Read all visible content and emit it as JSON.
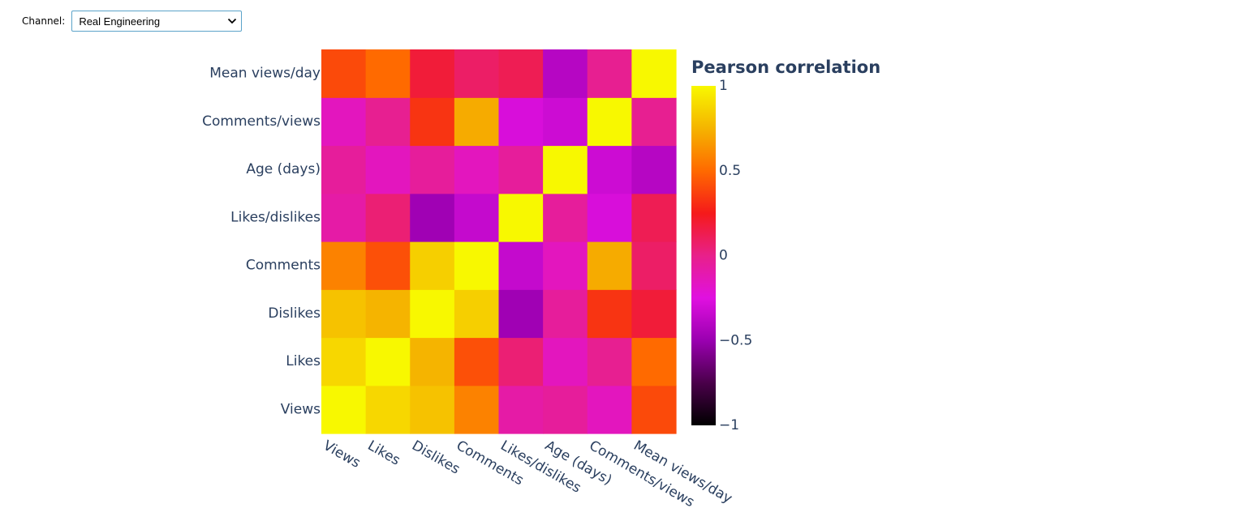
{
  "control": {
    "label": "Channel:",
    "selected": "Real Engineering"
  },
  "chart_data": {
    "type": "heatmap",
    "colorbar_title": "Pearson correlation",
    "colorbar_range": [
      -1,
      1
    ],
    "colorbar_ticks": [
      {
        "value": 1,
        "label": "1"
      },
      {
        "value": 0.5,
        "label": "0.5"
      },
      {
        "value": 0,
        "label": "0"
      },
      {
        "value": -0.5,
        "label": "−0.5"
      },
      {
        "value": -1,
        "label": "−1"
      }
    ],
    "colorscale": [
      "#000000",
      "#4a004a",
      "#9a00b0",
      "#e010e0",
      "#e8208a",
      "#f51a1a",
      "#ff6a00",
      "#f5b400",
      "#f8f800"
    ],
    "x_labels": [
      "Views",
      "Likes",
      "Dislikes",
      "Comments",
      "Likes/dislikes",
      "Age (days)",
      "Comments/views",
      "Mean views/day"
    ],
    "y_labels": [
      "Views",
      "Likes",
      "Dislikes",
      "Comments",
      "Likes/dislikes",
      "Age (days)",
      "Comments/views",
      "Mean views/day"
    ],
    "z": [
      [
        1.0,
        0.88,
        0.8,
        0.58,
        -0.08,
        -0.05,
        -0.15,
        0.4
      ],
      [
        0.88,
        1.0,
        0.75,
        0.42,
        0.05,
        -0.15,
        -0.02,
        0.5
      ],
      [
        0.8,
        0.75,
        1.0,
        0.85,
        -0.48,
        -0.05,
        0.33,
        0.18
      ],
      [
        0.58,
        0.42,
        0.85,
        1.0,
        -0.35,
        -0.15,
        0.72,
        0.08
      ],
      [
        -0.08,
        0.05,
        -0.48,
        -0.35,
        1.0,
        -0.05,
        -0.28,
        0.12
      ],
      [
        -0.05,
        -0.15,
        -0.05,
        -0.15,
        -0.05,
        1.0,
        -0.32,
        -0.4
      ],
      [
        -0.15,
        -0.02,
        0.33,
        0.72,
        -0.28,
        -0.32,
        1.0,
        -0.02
      ],
      [
        0.4,
        0.5,
        0.18,
        0.08,
        0.12,
        -0.4,
        -0.02,
        1.0
      ]
    ]
  }
}
